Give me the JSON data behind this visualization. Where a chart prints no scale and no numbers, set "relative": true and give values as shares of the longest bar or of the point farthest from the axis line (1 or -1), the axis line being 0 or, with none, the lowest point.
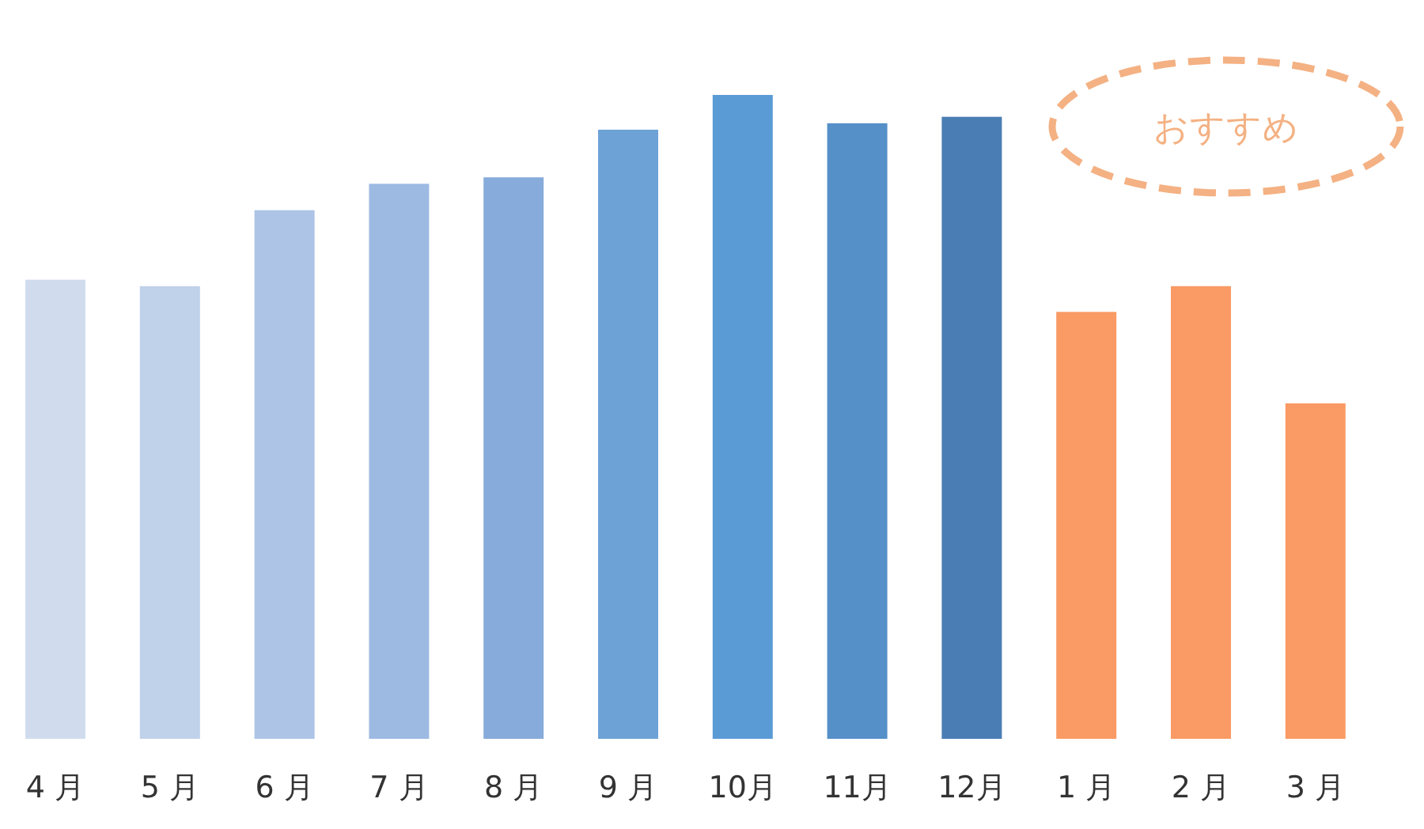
{
  "chart_data": {
    "type": "bar",
    "relative": true,
    "categories": [
      "4 月",
      "5 月",
      "6 月",
      "7 月",
      "8 月",
      "9 月",
      "10月",
      "11月",
      "12月",
      "1 月",
      "2 月",
      "3 月"
    ],
    "values": [
      0.713,
      0.703,
      0.821,
      0.862,
      0.872,
      0.946,
      1,
      0.956,
      0.966,
      0.663,
      0.703,
      0.521
    ],
    "colors": [
      "#d0dcee",
      "#c0d1ea",
      "#adc4e6",
      "#9dbae3",
      "#87abda",
      "#6da2d6",
      "#5b9bd5",
      "#5590c8",
      "#4a7db4",
      "#fa9a64",
      "#fa9a64",
      "#fa9a64"
    ],
    "annotations": [
      "おすすめ"
    ]
  }
}
